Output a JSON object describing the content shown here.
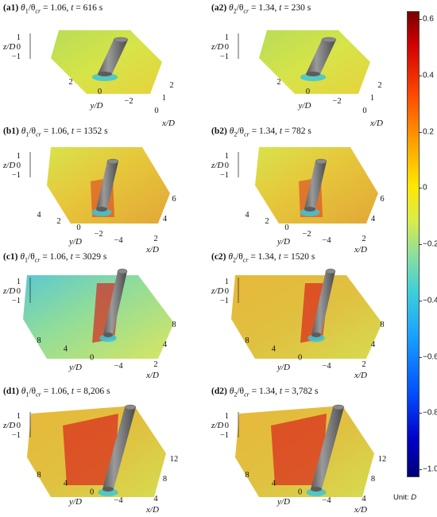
{
  "panels": [
    {
      "id": "a1",
      "tag": "(a1)",
      "theta": "θ",
      "sub": "1",
      "ratio": "/θ",
      "cr": "cr",
      "eq": " = 1.06, ",
      "tvar": "t",
      "tval": " = 616 s",
      "z_label": "z/D",
      "y_label": "y/D",
      "x_label": "x/D",
      "z_ticks": [
        "1",
        "0",
        "−1"
      ],
      "y_ticks": [
        "2",
        "0",
        "−2"
      ],
      "x_ticks": [
        "2",
        "1",
        "0"
      ]
    },
    {
      "id": "a2",
      "tag": "(a2)",
      "theta": "θ",
      "sub": "2",
      "ratio": "/θ",
      "cr": "cr",
      "eq": " = 1.34, ",
      "tvar": "t",
      "tval": " = 230 s",
      "z_label": "z/D",
      "y_label": "y/D",
      "x_label": "x/D",
      "z_ticks": [
        "1",
        "0",
        "−1"
      ],
      "y_ticks": [
        "2",
        "0",
        "−2"
      ],
      "x_ticks": [
        "2",
        "1",
        "0"
      ]
    },
    {
      "id": "b1",
      "tag": "(b1)",
      "theta": "θ",
      "sub": "1",
      "ratio": "/θ",
      "cr": "cr",
      "eq": " = 1.06, ",
      "tvar": "t",
      "tval": " = 1352 s",
      "z_label": "z/D",
      "y_label": "y/D",
      "x_label": "x/D",
      "z_ticks": [
        "1",
        "0",
        "−1"
      ],
      "y_ticks": [
        "4",
        "2",
        "0",
        "−2",
        "−4"
      ],
      "x_ticks": [
        "6",
        "4",
        "2"
      ]
    },
    {
      "id": "b2",
      "tag": "(b2)",
      "theta": "θ",
      "sub": "2",
      "ratio": "/θ",
      "cr": "cr",
      "eq": " = 1.34, ",
      "tvar": "t",
      "tval": " = 782 s",
      "z_label": "z/D",
      "y_label": "y/D",
      "x_label": "x/D",
      "z_ticks": [
        "1",
        "0",
        "−1"
      ],
      "y_ticks": [
        "4",
        "2",
        "0",
        "−2",
        "−4"
      ],
      "x_ticks": [
        "6",
        "4",
        "2"
      ]
    },
    {
      "id": "c1",
      "tag": "(c1)",
      "theta": "θ",
      "sub": "1",
      "ratio": "/θ",
      "cr": "cr",
      "eq": " = 1.06, ",
      "tvar": "t",
      "tval": " = 3029 s",
      "z_label": "z/D",
      "y_label": "y/D",
      "x_label": "x/D",
      "z_ticks": [
        "1",
        "0",
        "−1"
      ],
      "y_ticks": [
        "8",
        "4",
        "0",
        "−4"
      ],
      "x_ticks": [
        "8",
        "4",
        "2"
      ]
    },
    {
      "id": "c2",
      "tag": "(c2)",
      "theta": "θ",
      "sub": "2",
      "ratio": "/θ",
      "cr": "cr",
      "eq": " = 1.34, ",
      "tvar": "t",
      "tval": " = 1520 s",
      "z_label": "z/D",
      "y_label": "y/D",
      "x_label": "x/D",
      "z_ticks": [
        "1",
        "0",
        "−1"
      ],
      "y_ticks": [
        "8",
        "4",
        "0",
        "−4"
      ],
      "x_ticks": [
        "8",
        "4",
        "2"
      ]
    },
    {
      "id": "d1",
      "tag": "(d1)",
      "theta": "θ",
      "sub": "1",
      "ratio": "/θ",
      "cr": "cr",
      "eq": " = 1.06, ",
      "tvar": "t",
      "tval": " = 8,206 s",
      "z_label": "z/D",
      "y_label": "y/D",
      "x_label": "x/D",
      "z_ticks": [
        "1",
        "0",
        "−1"
      ],
      "y_ticks": [
        "8",
        "4",
        "0",
        "−4"
      ],
      "x_ticks": [
        "12",
        "8",
        "4"
      ]
    },
    {
      "id": "d2",
      "tag": "(d2)",
      "theta": "θ",
      "sub": "2",
      "ratio": "/θ",
      "cr": "cr",
      "eq": " = 1.34, ",
      "tvar": "t",
      "tval": " = 3,782 s",
      "z_label": "z/D",
      "y_label": "y/D",
      "x_label": "x/D",
      "z_ticks": [
        "1",
        "0",
        "−1"
      ],
      "y_ticks": [
        "8",
        "4",
        "0",
        "−4"
      ],
      "x_ticks": [
        "12",
        "8",
        "4"
      ]
    }
  ],
  "colorbar": {
    "ticks": [
      "0.6",
      "0.4",
      "0.2",
      "0",
      "−0.2",
      "−0.4",
      "−0.6",
      "−0.8",
      "−1.0"
    ],
    "range": [
      -1.0,
      0.6
    ],
    "unit_prefix": "Unit: ",
    "unit_var": "D"
  }
}
